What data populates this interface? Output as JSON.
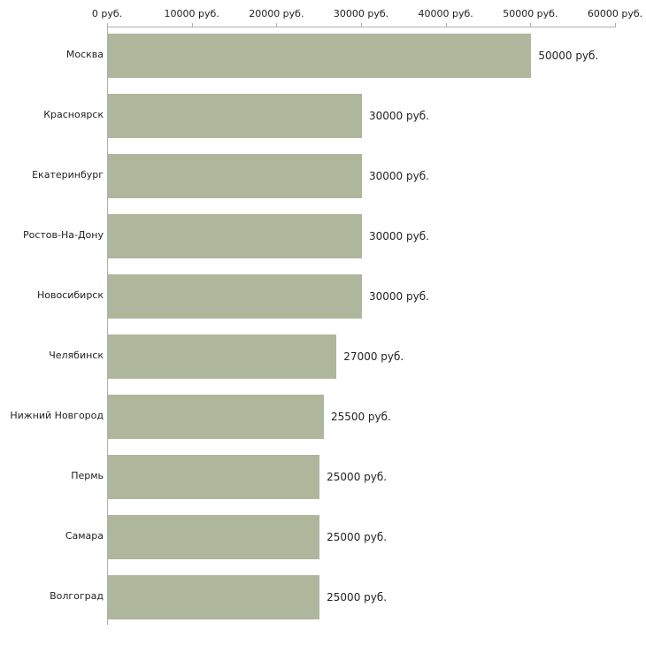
{
  "chart_data": {
    "type": "bar",
    "orientation": "horizontal",
    "title": "",
    "xlabel": "",
    "ylabel": "",
    "categories": [
      "Москва",
      "Красноярск",
      "Екатеринбург",
      "Ростов-На-Дону",
      "Новосибирск",
      "Челябинск",
      "Нижний Новгород",
      "Пермь",
      "Самара",
      "Волгоград"
    ],
    "values": [
      50000,
      30000,
      30000,
      30000,
      30000,
      27000,
      25500,
      25000,
      25000,
      25000
    ],
    "value_labels": [
      "50000 руб.",
      "30000 руб.",
      "30000 руб.",
      "30000 руб.",
      "30000 руб.",
      "27000 руб.",
      "25500 руб.",
      "25000 руб.",
      "25000 руб.",
      "25000 руб."
    ],
    "xlim": [
      0,
      60000
    ],
    "x_ticks": [
      {
        "value": 0,
        "label": "0 руб."
      },
      {
        "value": 10000,
        "label": "10000 руб."
      },
      {
        "value": 20000,
        "label": "20000 руб."
      },
      {
        "value": 30000,
        "label": "30000 руб."
      },
      {
        "value": 40000,
        "label": "40000 руб."
      },
      {
        "value": 50000,
        "label": "50000 руб."
      },
      {
        "value": 60000,
        "label": "60000 руб."
      }
    ],
    "grid": false,
    "legend": false,
    "bar_color": "#aeb69c",
    "axis_color": "#b0b0b0",
    "text_color": "#222222",
    "background_color": "#ffffff"
  }
}
